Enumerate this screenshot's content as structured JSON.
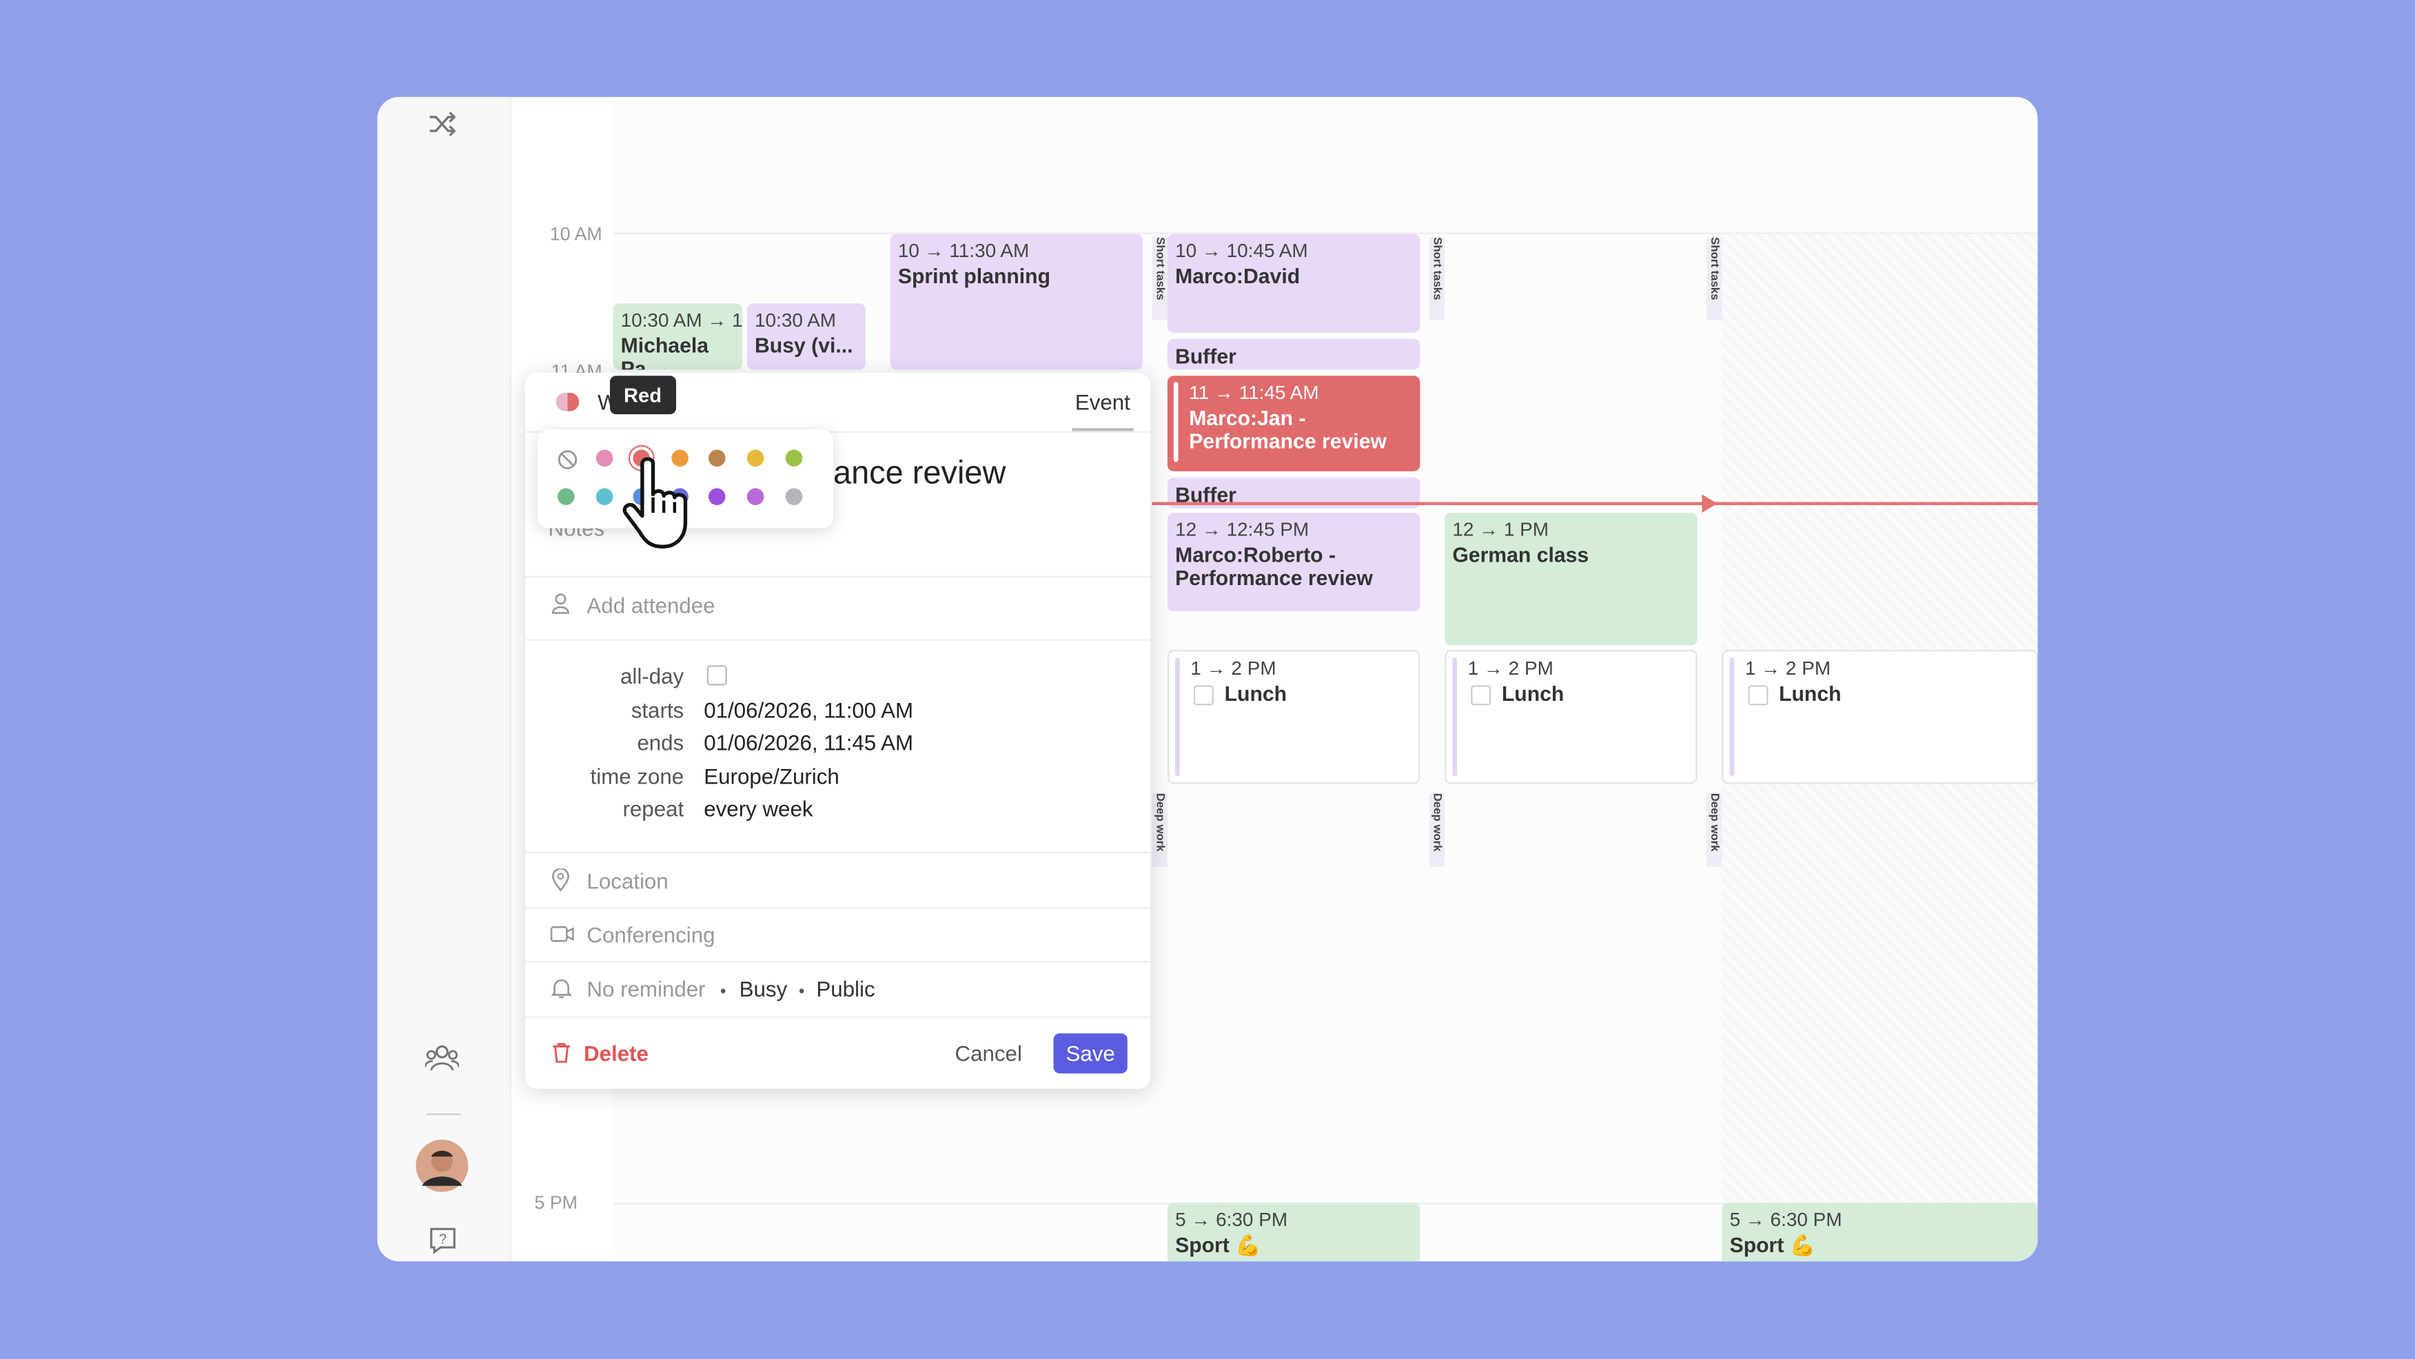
{
  "time_labels": [
    "10 AM",
    "11 AM",
    "5 PM"
  ],
  "events": [
    {
      "time": "10:30 AM → 1",
      "title": "Michaela Pa"
    },
    {
      "time": "10:30 AM",
      "title": "Busy (vi..."
    },
    {
      "time": "10 → 11:30 AM",
      "title": "Sprint planning"
    },
    {
      "time": "10 → 10:45 AM",
      "title": "Marco:David"
    },
    {
      "title": "Buffer"
    },
    {
      "time": "11 → 11:45 AM",
      "title": "Marco:Jan - Performance review"
    },
    {
      "title": "Buffer"
    },
    {
      "time": "12 → 12:45 PM",
      "title": "Marco:Roberto - Performance review"
    },
    {
      "time": "12 → 1 PM",
      "title": "German class"
    },
    {
      "time": "1 → 2 PM",
      "title": "Lunch"
    },
    {
      "time": "1 → 2 PM",
      "title": "Lunch"
    },
    {
      "time": "1 → 2 PM",
      "title": "Lunch"
    },
    {
      "time": "5 → 6:30 PM",
      "title": "Sport 💪"
    },
    {
      "time": "5 → 6:30 PM",
      "title": "Sport 💪"
    }
  ],
  "side_labels": [
    "Short tasks",
    "Short tasks",
    "Short tasks",
    "Deep work",
    "Deep work",
    "Deep work"
  ],
  "editor": {
    "calendar": "W",
    "tooltip": "Red",
    "tab": "Event",
    "title": "ance review",
    "notes": "Notes",
    "attendee": "Add attendee",
    "fields": [
      {
        "label": "all-day"
      },
      {
        "label": "starts",
        "value": "01/06/2026, 11:00 AM"
      },
      {
        "label": "ends",
        "value": "01/06/2026, 11:45 AM"
      },
      {
        "label": "time zone",
        "value": "Europe/Zurich"
      },
      {
        "label": "repeat",
        "value": "every week"
      }
    ],
    "location": "Location",
    "conferencing": "Conferencing",
    "reminder": "No reminder",
    "availability": "Busy",
    "visibility": "Public",
    "delete": "Delete",
    "cancel": "Cancel",
    "save": "Save"
  }
}
